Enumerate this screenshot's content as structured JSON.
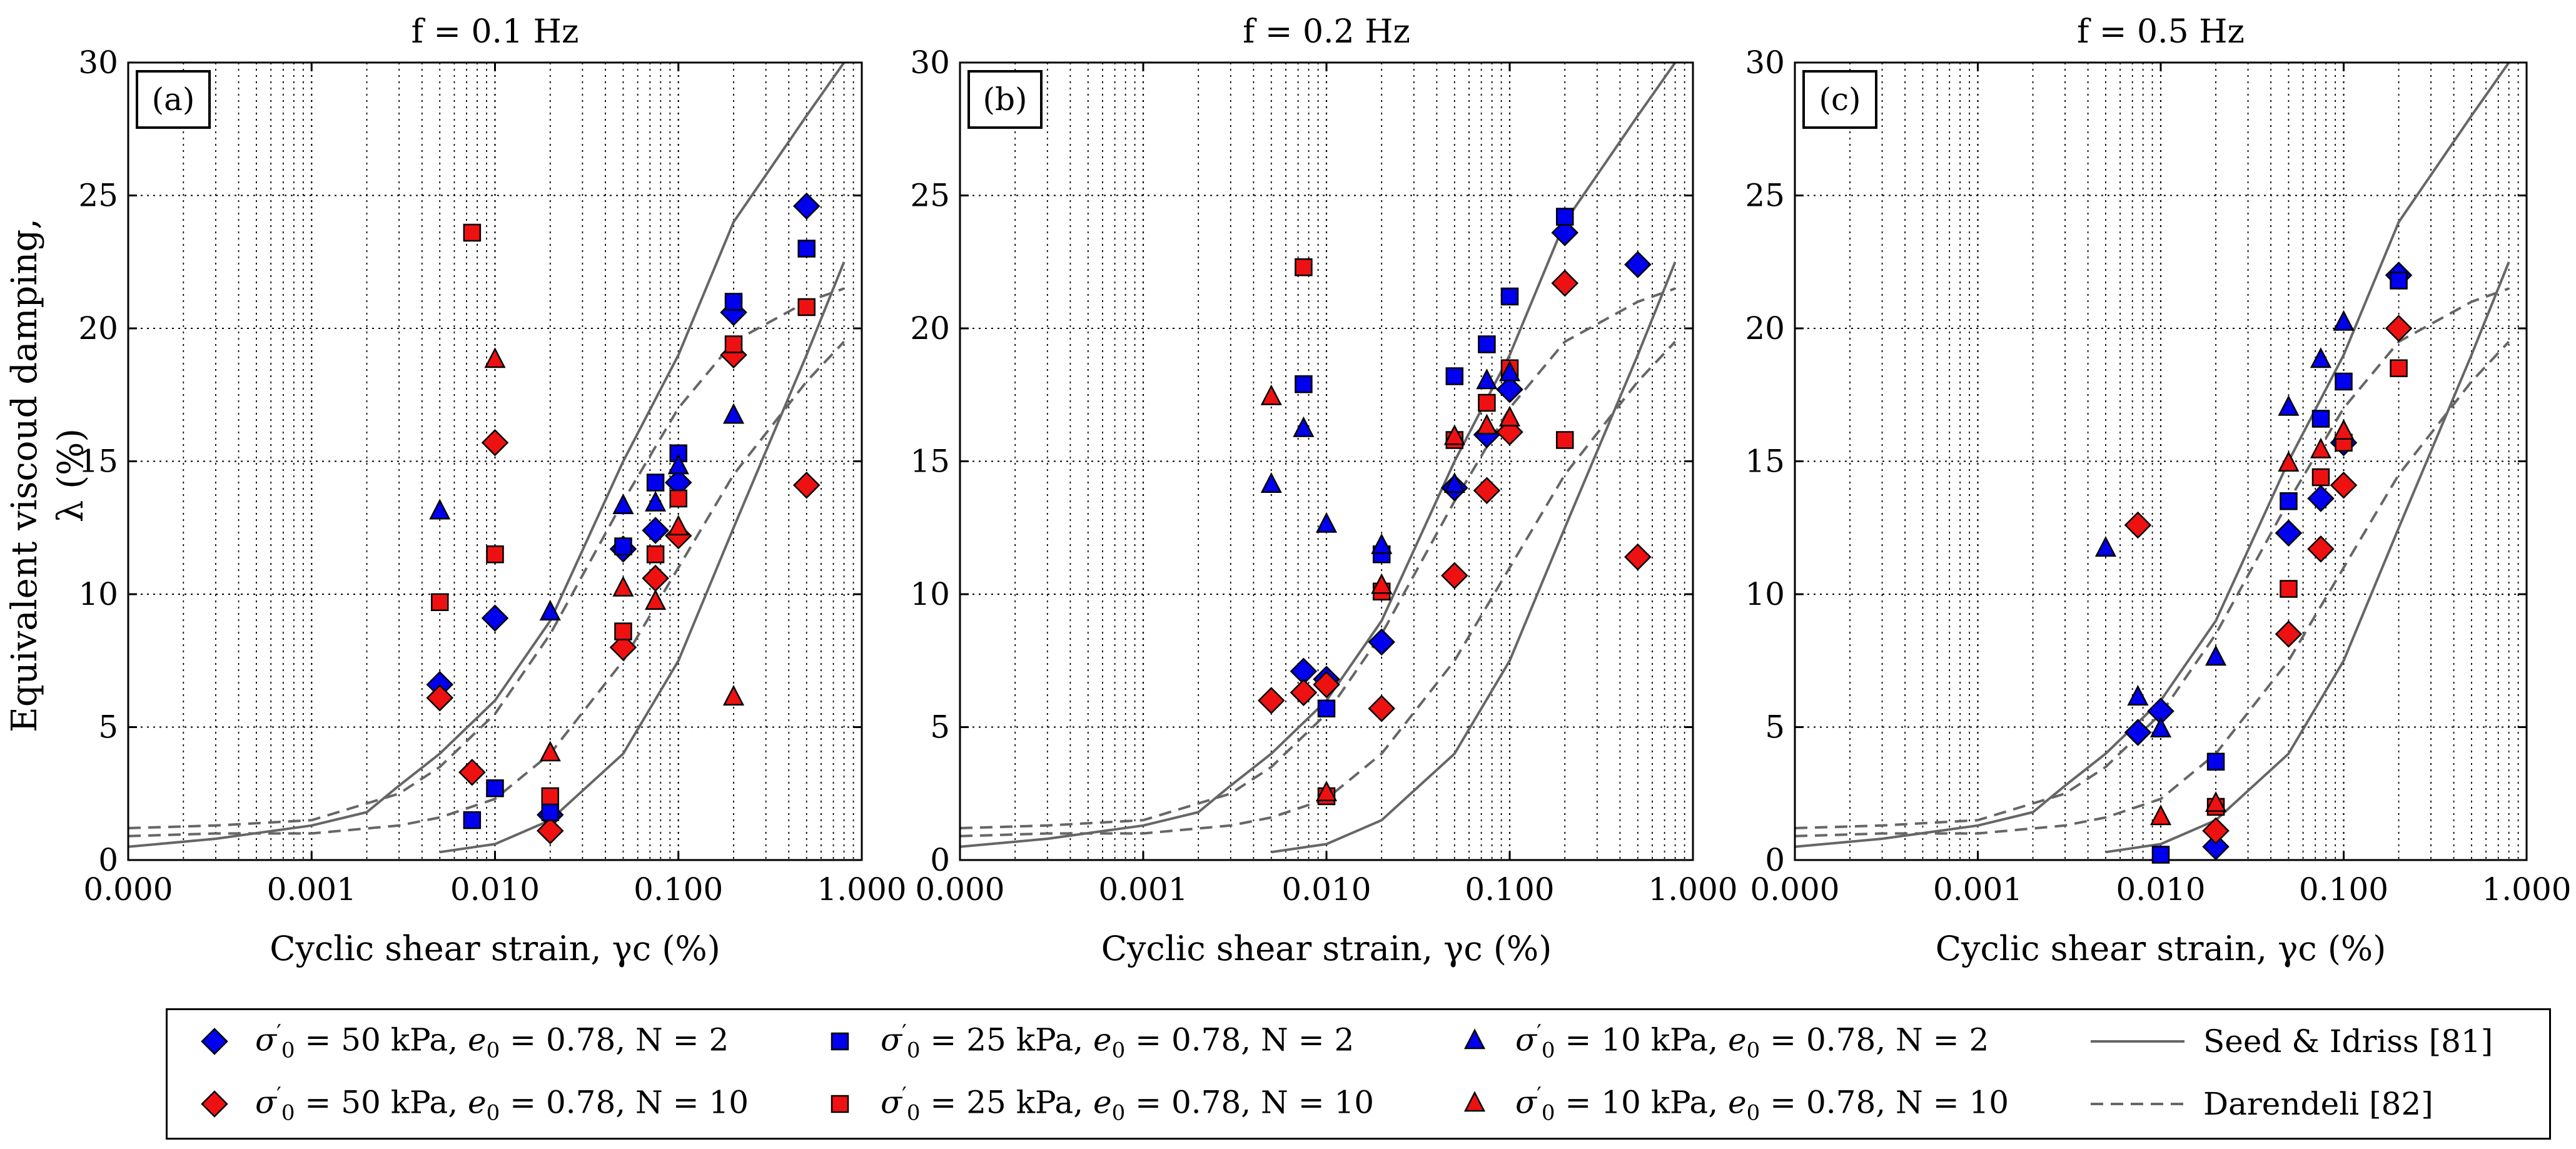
{
  "figure": {
    "y_label_line1": "Equivalent viscoud damping,",
    "y_label_line2": "λ (%)",
    "x_label": "Cyclic shear strain, γc (%)"
  },
  "axes_common": {
    "x_ticks": [
      "0.000",
      "0.001",
      "0.010",
      "0.100",
      "1.000"
    ],
    "y_ticks": [
      "0",
      "5",
      "10",
      "15",
      "20",
      "25",
      "30"
    ],
    "x_scale": "log",
    "x_range": [
      0.0001,
      1.0
    ],
    "y_range": [
      0,
      30
    ],
    "grid": "dotted, major and minor"
  },
  "colors": {
    "blue": "#0000ee",
    "red": "#ee1111",
    "curve": "#666666",
    "edge": "#000000"
  },
  "legend": {
    "placement": "bottom",
    "items": [
      {
        "key": "s50_n2",
        "marker": "diamond",
        "color": "blue",
        "sigma": "50",
        "e0": "0.78",
        "N": "2"
      },
      {
        "key": "s50_n10",
        "marker": "diamond",
        "color": "red",
        "sigma": "50",
        "e0": "0.78",
        "N": "10"
      },
      {
        "key": "s25_n2",
        "marker": "square",
        "color": "blue",
        "sigma": "25",
        "e0": "0.78",
        "N": "2"
      },
      {
        "key": "s25_n10",
        "marker": "square",
        "color": "red",
        "sigma": "25",
        "e0": "0.78",
        "N": "10"
      },
      {
        "key": "s10_n2",
        "marker": "triangle",
        "color": "blue",
        "sigma": "10",
        "e0": "0.78",
        "N": "2"
      },
      {
        "key": "s10_n10",
        "marker": "triangle",
        "color": "red",
        "sigma": "10",
        "e0": "0.78",
        "N": "10"
      },
      {
        "key": "seed",
        "line": "solid",
        "label": "Seed & Idriss [81]"
      },
      {
        "key": "dar",
        "line": "dashed",
        "label": "Darendeli [82]"
      }
    ]
  },
  "chart_data": [
    {
      "type": "scatter",
      "panel_label": "(a)",
      "title": "f = 0.1 Hz",
      "series": [
        {
          "key": "s50_n2",
          "points": [
            [
              0.005,
              6.6
            ],
            [
              0.01,
              9.1
            ],
            [
              0.02,
              1.7
            ],
            [
              0.05,
              11.7
            ],
            [
              0.075,
              12.4
            ],
            [
              0.1,
              14.2
            ],
            [
              0.2,
              20.6
            ],
            [
              0.5,
              24.6
            ]
          ]
        },
        {
          "key": "s50_n10",
          "points": [
            [
              0.005,
              6.1
            ],
            [
              0.0075,
              3.3
            ],
            [
              0.01,
              15.7
            ],
            [
              0.02,
              1.1
            ],
            [
              0.05,
              8.0
            ],
            [
              0.075,
              10.6
            ],
            [
              0.1,
              12.2
            ],
            [
              0.2,
              19.0
            ],
            [
              0.5,
              14.1
            ]
          ]
        },
        {
          "key": "s25_n2",
          "points": [
            [
              0.0075,
              1.5
            ],
            [
              0.01,
              2.7
            ],
            [
              0.02,
              1.8
            ],
            [
              0.05,
              11.8
            ],
            [
              0.075,
              14.2
            ],
            [
              0.1,
              15.3
            ],
            [
              0.2,
              21.0
            ],
            [
              0.5,
              23.0
            ]
          ]
        },
        {
          "key": "s25_n10",
          "points": [
            [
              0.005,
              9.7
            ],
            [
              0.0075,
              23.6
            ],
            [
              0.01,
              11.5
            ],
            [
              0.02,
              2.4
            ],
            [
              0.05,
              8.6
            ],
            [
              0.075,
              11.5
            ],
            [
              0.1,
              13.6
            ],
            [
              0.2,
              19.4
            ],
            [
              0.5,
              20.8
            ]
          ]
        },
        {
          "key": "s10_n2",
          "points": [
            [
              0.005,
              13.1
            ],
            [
              0.02,
              9.3
            ],
            [
              0.05,
              13.3
            ],
            [
              0.075,
              13.4
            ],
            [
              0.1,
              14.8
            ],
            [
              0.2,
              16.7
            ]
          ]
        },
        {
          "key": "s10_n10",
          "points": [
            [
              0.01,
              18.8
            ],
            [
              0.02,
              4.0
            ],
            [
              0.05,
              10.2
            ],
            [
              0.075,
              9.7
            ],
            [
              0.1,
              12.5
            ],
            [
              0.2,
              6.1
            ]
          ]
        }
      ]
    },
    {
      "type": "scatter",
      "panel_label": "(b)",
      "title": "f = 0.2 Hz",
      "series": [
        {
          "key": "s50_n2",
          "points": [
            [
              0.0075,
              7.1
            ],
            [
              0.01,
              6.8
            ],
            [
              0.02,
              8.2
            ],
            [
              0.05,
              14.0
            ],
            [
              0.075,
              16.0
            ],
            [
              0.1,
              17.7
            ],
            [
              0.2,
              23.6
            ],
            [
              0.5,
              22.4
            ]
          ]
        },
        {
          "key": "s50_n10",
          "points": [
            [
              0.005,
              6.0
            ],
            [
              0.0075,
              6.3
            ],
            [
              0.01,
              6.6
            ],
            [
              0.02,
              5.7
            ],
            [
              0.05,
              10.7
            ],
            [
              0.075,
              13.9
            ],
            [
              0.1,
              16.1
            ],
            [
              0.2,
              21.7
            ],
            [
              0.5,
              11.4
            ]
          ]
        },
        {
          "key": "s25_n2",
          "points": [
            [
              0.0075,
              17.9
            ],
            [
              0.01,
              5.7
            ],
            [
              0.02,
              11.5
            ],
            [
              0.05,
              18.2
            ],
            [
              0.075,
              19.4
            ],
            [
              0.1,
              21.2
            ],
            [
              0.2,
              24.2
            ]
          ]
        },
        {
          "key": "s25_n10",
          "points": [
            [
              0.0075,
              22.3
            ],
            [
              0.01,
              2.4
            ],
            [
              0.02,
              10.1
            ],
            [
              0.05,
              15.8
            ],
            [
              0.075,
              17.2
            ],
            [
              0.1,
              18.5
            ],
            [
              0.2,
              15.8
            ]
          ]
        },
        {
          "key": "s10_n2",
          "points": [
            [
              0.005,
              14.1
            ],
            [
              0.0075,
              16.2
            ],
            [
              0.01,
              12.6
            ],
            [
              0.02,
              11.8
            ],
            [
              0.05,
              14.1
            ],
            [
              0.075,
              18.0
            ],
            [
              0.1,
              18.3
            ]
          ]
        },
        {
          "key": "s10_n10",
          "points": [
            [
              0.005,
              17.4
            ],
            [
              0.01,
              2.5
            ],
            [
              0.02,
              10.3
            ],
            [
              0.05,
              15.9
            ],
            [
              0.075,
              16.3
            ],
            [
              0.1,
              16.6
            ]
          ]
        }
      ]
    },
    {
      "type": "scatter",
      "panel_label": "(c)",
      "title": "f = 0.5 Hz",
      "series": [
        {
          "key": "s50_n2",
          "points": [
            [
              0.0075,
              4.8
            ],
            [
              0.01,
              5.6
            ],
            [
              0.02,
              0.5
            ],
            [
              0.05,
              12.3
            ],
            [
              0.075,
              13.6
            ],
            [
              0.1,
              15.7
            ],
            [
              0.2,
              22.0
            ]
          ]
        },
        {
          "key": "s50_n10",
          "points": [
            [
              0.0075,
              12.6
            ],
            [
              0.02,
              1.1
            ],
            [
              0.05,
              8.5
            ],
            [
              0.075,
              11.7
            ],
            [
              0.1,
              14.1
            ],
            [
              0.2,
              20.0
            ]
          ]
        },
        {
          "key": "s25_n2",
          "points": [
            [
              0.01,
              0.2
            ],
            [
              0.02,
              3.7
            ],
            [
              0.05,
              13.5
            ],
            [
              0.075,
              16.6
            ],
            [
              0.1,
              18.0
            ],
            [
              0.2,
              21.8
            ]
          ]
        },
        {
          "key": "s25_n10",
          "points": [
            [
              0.02,
              2.0
            ],
            [
              0.05,
              10.2
            ],
            [
              0.075,
              14.4
            ],
            [
              0.1,
              15.7
            ],
            [
              0.2,
              18.5
            ]
          ]
        },
        {
          "key": "s10_n2",
          "points": [
            [
              0.005,
              11.7
            ],
            [
              0.0075,
              6.1
            ],
            [
              0.01,
              4.9
            ],
            [
              0.02,
              7.6
            ],
            [
              0.05,
              17.0
            ],
            [
              0.075,
              18.8
            ],
            [
              0.1,
              20.2
            ]
          ]
        },
        {
          "key": "s10_n10",
          "points": [
            [
              0.01,
              1.6
            ],
            [
              0.02,
              2.1
            ],
            [
              0.05,
              14.9
            ],
            [
              0.075,
              15.4
            ],
            [
              0.1,
              16.1
            ]
          ]
        }
      ]
    }
  ],
  "reference_curves": [
    {
      "key": "seed",
      "style": "solid",
      "points": [
        [
          0.0001,
          0.5
        ],
        [
          0.0003,
          0.8
        ],
        [
          0.001,
          1.3
        ],
        [
          0.002,
          1.8
        ],
        [
          0.003,
          2.8
        ],
        [
          0.005,
          4.0
        ],
        [
          0.01,
          6.0
        ],
        [
          0.02,
          9.0
        ],
        [
          0.05,
          15.0
        ],
        [
          0.1,
          19.0
        ],
        [
          0.2,
          24.0
        ],
        [
          0.5,
          28.0
        ],
        [
          0.8,
          30.0
        ]
      ]
    },
    {
      "key": "seed",
      "style": "solid",
      "points": [
        [
          0.005,
          0.3
        ],
        [
          0.01,
          0.6
        ],
        [
          0.02,
          1.5
        ],
        [
          0.05,
          4.0
        ],
        [
          0.1,
          7.5
        ],
        [
          0.2,
          12.5
        ],
        [
          0.5,
          19.0
        ],
        [
          0.8,
          22.5
        ]
      ]
    },
    {
      "key": "dar",
      "style": "dashed",
      "points": [
        [
          0.0001,
          1.2
        ],
        [
          0.0003,
          1.3
        ],
        [
          0.001,
          1.5
        ],
        [
          0.003,
          2.5
        ],
        [
          0.005,
          3.5
        ],
        [
          0.01,
          5.5
        ],
        [
          0.02,
          8.5
        ],
        [
          0.05,
          13.5
        ],
        [
          0.1,
          17.0
        ],
        [
          0.2,
          19.5
        ],
        [
          0.5,
          21.0
        ],
        [
          0.8,
          21.5
        ]
      ]
    },
    {
      "key": "dar",
      "style": "dashed",
      "points": [
        [
          0.0001,
          0.9
        ],
        [
          0.0003,
          1.0
        ],
        [
          0.001,
          1.0
        ],
        [
          0.003,
          1.3
        ],
        [
          0.005,
          1.6
        ],
        [
          0.01,
          2.3
        ],
        [
          0.02,
          4.0
        ],
        [
          0.05,
          7.5
        ],
        [
          0.1,
          11.0
        ],
        [
          0.2,
          14.5
        ],
        [
          0.5,
          18.0
        ],
        [
          0.8,
          19.5
        ]
      ]
    }
  ]
}
